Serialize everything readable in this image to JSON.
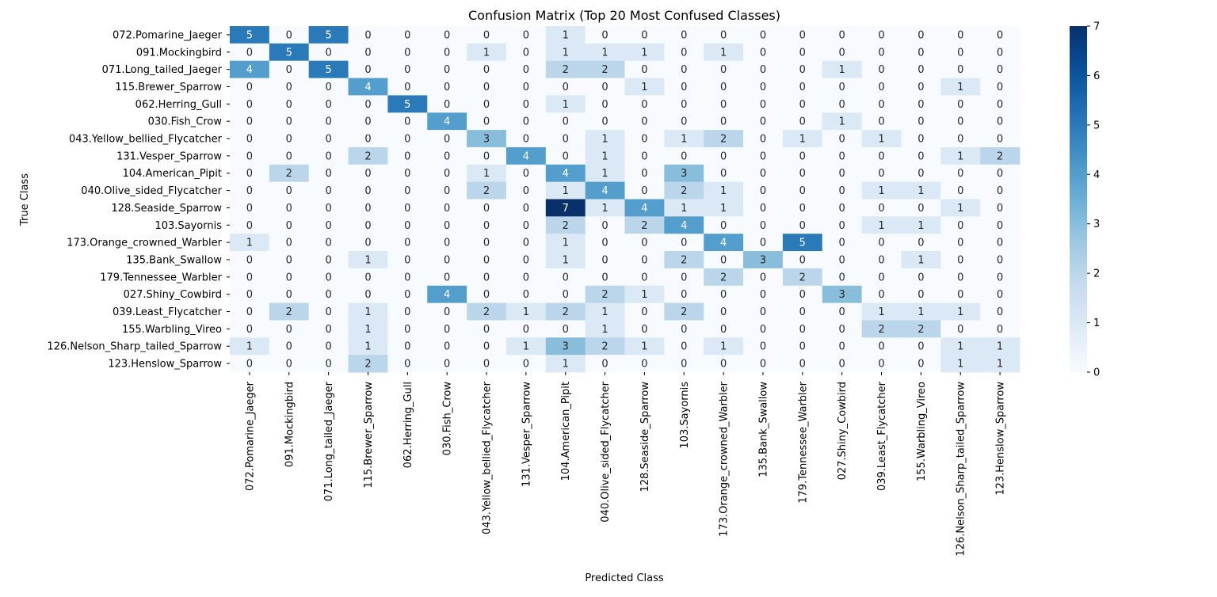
{
  "chart_data": {
    "type": "heatmap",
    "title": "Confusion Matrix (Top 20 Most Confused Classes)",
    "xlabel": "Predicted Class",
    "ylabel": "True Class",
    "colormap": "Blues",
    "low_color": "#f7fbff",
    "high_color": "#08306b",
    "vmin": 0,
    "vmax": 7,
    "colorbar_ticks": [
      "0",
      "1",
      "2",
      "3",
      "4",
      "5",
      "6",
      "7"
    ],
    "rows": [
      "072.Pomarine_Jaeger",
      "091.Mockingbird",
      "071.Long_tailed_Jaeger",
      "115.Brewer_Sparrow",
      "062.Herring_Gull",
      "030.Fish_Crow",
      "043.Yellow_bellied_Flycatcher",
      "131.Vesper_Sparrow",
      "104.American_Pipit",
      "040.Olive_sided_Flycatcher",
      "128.Seaside_Sparrow",
      "103.Sayornis",
      "173.Orange_crowned_Warbler",
      "135.Bank_Swallow",
      "179.Tennessee_Warbler",
      "027.Shiny_Cowbird",
      "039.Least_Flycatcher",
      "155.Warbling_Vireo",
      "126.Nelson_Sharp_tailed_Sparrow",
      "123.Henslow_Sparrow"
    ],
    "columns": [
      "072.Pomarine_Jaeger",
      "091.Mockingbird",
      "071.Long_tailed_Jaeger",
      "115.Brewer_Sparrow",
      "062.Herring_Gull",
      "030.Fish_Crow",
      "043.Yellow_bellied_Flycatcher",
      "131.Vesper_Sparrow",
      "104.American_Pipit",
      "040.Olive_sided_Flycatcher",
      "128.Seaside_Sparrow",
      "103.Sayornis",
      "173.Orange_crowned_Warbler",
      "135.Bank_Swallow",
      "179.Tennessee_Warbler",
      "027.Shiny_Cowbird",
      "039.Least_Flycatcher",
      "155.Warbling_Vireo",
      "126.Nelson_Sharp_tailed_Sparrow",
      "123.Henslow_Sparrow"
    ],
    "values": [
      [
        5,
        0,
        5,
        0,
        0,
        0,
        0,
        0,
        1,
        0,
        0,
        0,
        0,
        0,
        0,
        0,
        0,
        0,
        0,
        0
      ],
      [
        0,
        5,
        0,
        0,
        0,
        0,
        1,
        0,
        1,
        1,
        1,
        0,
        1,
        0,
        0,
        0,
        0,
        0,
        0,
        0
      ],
      [
        4,
        0,
        5,
        0,
        0,
        0,
        0,
        0,
        2,
        2,
        0,
        0,
        0,
        0,
        0,
        1,
        0,
        0,
        0,
        0
      ],
      [
        0,
        0,
        0,
        4,
        0,
        0,
        0,
        0,
        0,
        0,
        1,
        0,
        0,
        0,
        0,
        0,
        0,
        0,
        1,
        0
      ],
      [
        0,
        0,
        0,
        0,
        5,
        0,
        0,
        0,
        1,
        0,
        0,
        0,
        0,
        0,
        0,
        0,
        0,
        0,
        0,
        0
      ],
      [
        0,
        0,
        0,
        0,
        0,
        4,
        0,
        0,
        0,
        0,
        0,
        0,
        0,
        0,
        0,
        1,
        0,
        0,
        0,
        0
      ],
      [
        0,
        0,
        0,
        0,
        0,
        0,
        3,
        0,
        0,
        1,
        0,
        1,
        2,
        0,
        1,
        0,
        1,
        0,
        0,
        0
      ],
      [
        0,
        0,
        0,
        2,
        0,
        0,
        0,
        4,
        0,
        1,
        0,
        0,
        0,
        0,
        0,
        0,
        0,
        0,
        1,
        2
      ],
      [
        0,
        2,
        0,
        0,
        0,
        0,
        1,
        0,
        4,
        1,
        0,
        3,
        0,
        0,
        0,
        0,
        0,
        0,
        0,
        0
      ],
      [
        0,
        0,
        0,
        0,
        0,
        0,
        2,
        0,
        1,
        4,
        0,
        2,
        1,
        0,
        0,
        0,
        1,
        1,
        0,
        0
      ],
      [
        0,
        0,
        0,
        0,
        0,
        0,
        0,
        0,
        7,
        1,
        4,
        1,
        1,
        0,
        0,
        0,
        0,
        0,
        1,
        0
      ],
      [
        0,
        0,
        0,
        0,
        0,
        0,
        0,
        0,
        2,
        0,
        2,
        4,
        0,
        0,
        0,
        0,
        1,
        1,
        0,
        0
      ],
      [
        1,
        0,
        0,
        0,
        0,
        0,
        0,
        0,
        1,
        0,
        0,
        0,
        4,
        0,
        5,
        0,
        0,
        0,
        0,
        0
      ],
      [
        0,
        0,
        0,
        1,
        0,
        0,
        0,
        0,
        1,
        0,
        0,
        2,
        0,
        3,
        0,
        0,
        0,
        1,
        0,
        0
      ],
      [
        0,
        0,
        0,
        0,
        0,
        0,
        0,
        0,
        0,
        0,
        0,
        0,
        2,
        0,
        2,
        0,
        0,
        0,
        0,
        0
      ],
      [
        0,
        0,
        0,
        0,
        0,
        4,
        0,
        0,
        0,
        2,
        1,
        0,
        0,
        0,
        0,
        3,
        0,
        0,
        0,
        0
      ],
      [
        0,
        2,
        0,
        1,
        0,
        0,
        2,
        1,
        2,
        1,
        0,
        2,
        0,
        0,
        0,
        0,
        1,
        1,
        1,
        0
      ],
      [
        0,
        0,
        0,
        1,
        0,
        0,
        0,
        0,
        0,
        1,
        0,
        0,
        0,
        0,
        0,
        0,
        2,
        2,
        0,
        0
      ],
      [
        1,
        0,
        0,
        1,
        0,
        0,
        0,
        1,
        3,
        2,
        1,
        0,
        1,
        0,
        0,
        0,
        0,
        0,
        1,
        1
      ],
      [
        0,
        0,
        0,
        2,
        0,
        0,
        0,
        0,
        1,
        0,
        0,
        0,
        0,
        0,
        0,
        0,
        0,
        0,
        1,
        1
      ]
    ]
  }
}
